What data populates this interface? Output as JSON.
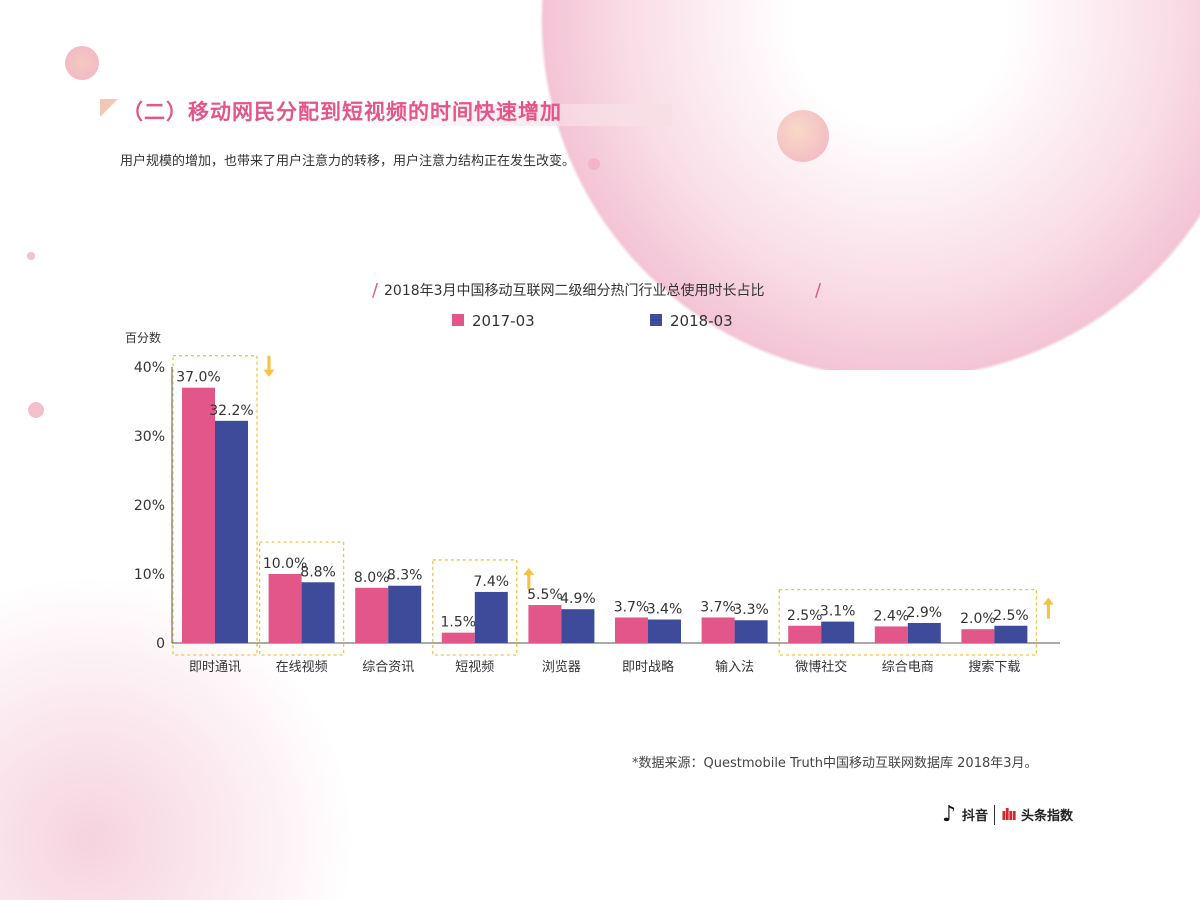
{
  "header": {
    "title": "（二）移动网民分配到短视频的时间快速增加",
    "subtitle": "用户规模的增加，也带来了用户注意力的转移，用户注意力结构正在发生改变。"
  },
  "footer": {
    "source": "*数据来源：Questmobile Truth中国移动互联网数据库 2018年3月。",
    "logo_left": "抖音",
    "logo_right": "头条指数"
  },
  "colors": {
    "series1": "#e2568a",
    "series2": "#3e4a9a",
    "highlight": "#f5c242",
    "accent": "#e2568a"
  },
  "chart_data": {
    "type": "bar",
    "title": "2018年3月中国移动互联网二级细分热门行业总使用时长占比",
    "ylabel": "百分数",
    "ylim": [
      0,
      40
    ],
    "yticks": [
      "0",
      "10%",
      "20%",
      "30%",
      "40%"
    ],
    "legend": "top",
    "grid": false,
    "categories": [
      "即时通讯",
      "在线视频",
      "综合资讯",
      "短视频",
      "浏览器",
      "即时战略",
      "输入法",
      "微博社交",
      "综合电商",
      "搜索下载"
    ],
    "series": [
      {
        "name": "2017-03",
        "values": [
          37.0,
          10.0,
          8.0,
          1.5,
          5.5,
          3.7,
          3.7,
          2.5,
          2.4,
          2.0
        ],
        "labels": [
          "37.0%",
          "10.0%",
          "8.0%",
          "1.5%",
          "5.5%",
          "3.7%",
          "3.7%",
          "2.5%",
          "2.4%",
          "2.0%"
        ]
      },
      {
        "name": "2018-03",
        "values": [
          32.2,
          8.8,
          8.3,
          7.4,
          4.9,
          3.4,
          3.3,
          3.1,
          2.9,
          2.5
        ],
        "labels": [
          "32.2%",
          "8.8%",
          "8.3%",
          "7.4%",
          "4.9%",
          "3.4%",
          "3.3%",
          "3.1%",
          "2.9%",
          "2.5%"
        ]
      }
    ],
    "highlights": [
      {
        "categories": [
          "即时通讯"
        ],
        "trend": "down"
      },
      {
        "categories": [
          "在线视频"
        ],
        "trend": "none"
      },
      {
        "categories": [
          "短视频"
        ],
        "trend": "up"
      },
      {
        "categories": [
          "微博社交",
          "综合电商",
          "搜索下载"
        ],
        "trend": "up"
      }
    ]
  }
}
